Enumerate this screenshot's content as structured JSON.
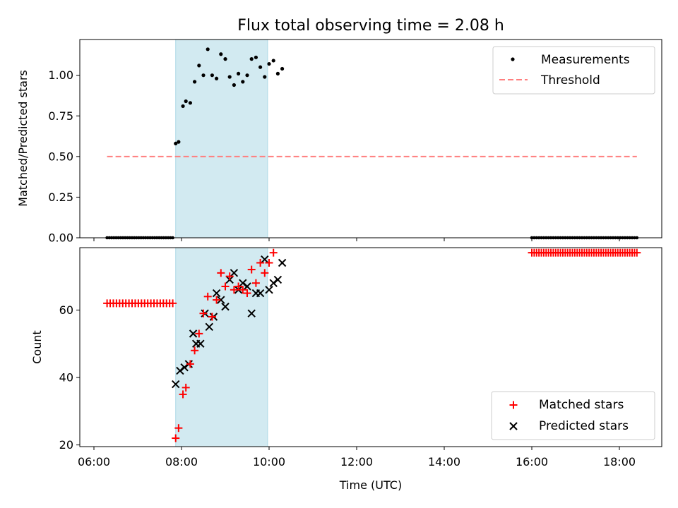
{
  "chart_data": [
    {
      "type": "scatter",
      "title": "Flux total observing time = 2.08 h",
      "ylabel": "Matched/Predicted stars",
      "xlabel": "",
      "xlim": [
        "06:00",
        "19:00"
      ],
      "ylim": [
        0.0,
        1.22
      ],
      "yticks": [
        "0.00",
        "0.25",
        "0.50",
        "0.75",
        "1.00"
      ],
      "yticks_values": [
        0,
        0.25,
        0.5,
        0.75,
        1.0
      ],
      "legend": {
        "placement": "top-right",
        "entries": [
          "Measurements",
          "Threshold"
        ]
      },
      "highlight": {
        "from": "07:52",
        "to": "09:58",
        "color": "#add8e6"
      },
      "colors": {
        "measurements": "#000000",
        "threshold": "#ff7f7f"
      },
      "threshold": {
        "value": 0.5,
        "from": "06:18",
        "to": "18:24"
      },
      "measurements": {
        "zero_segments": [
          {
            "from": "06:18",
            "to": "07:48",
            "count": 30
          },
          {
            "from": "16:00",
            "to": "18:24",
            "count": 45
          }
        ],
        "points": [
          {
            "x": "07:52",
            "y": 0.58
          },
          {
            "x": "07:56",
            "y": 0.59
          },
          {
            "x": "08:02",
            "y": 0.81
          },
          {
            "x": "08:06",
            "y": 0.84
          },
          {
            "x": "08:12",
            "y": 0.83
          },
          {
            "x": "08:18",
            "y": 0.96
          },
          {
            "x": "08:24",
            "y": 1.06
          },
          {
            "x": "08:30",
            "y": 1.0
          },
          {
            "x": "08:36",
            "y": 1.16
          },
          {
            "x": "08:42",
            "y": 1.0
          },
          {
            "x": "08:48",
            "y": 0.98
          },
          {
            "x": "08:54",
            "y": 1.13
          },
          {
            "x": "09:00",
            "y": 1.1
          },
          {
            "x": "09:06",
            "y": 0.99
          },
          {
            "x": "09:12",
            "y": 0.94
          },
          {
            "x": "09:18",
            "y": 1.01
          },
          {
            "x": "09:24",
            "y": 0.96
          },
          {
            "x": "09:30",
            "y": 1.0
          },
          {
            "x": "09:36",
            "y": 1.1
          },
          {
            "x": "09:42",
            "y": 1.11
          },
          {
            "x": "09:48",
            "y": 1.05
          },
          {
            "x": "09:54",
            "y": 0.99
          },
          {
            "x": "10:00",
            "y": 1.07
          },
          {
            "x": "10:06",
            "y": 1.09
          },
          {
            "x": "10:12",
            "y": 1.01
          },
          {
            "x": "10:18",
            "y": 1.04
          }
        ]
      }
    },
    {
      "type": "scatter",
      "title": "",
      "ylabel": "Count",
      "xlabel": "Time (UTC)",
      "xlim": [
        "06:00",
        "19:00"
      ],
      "ylim": [
        19.5,
        78.5
      ],
      "yticks": [
        "20",
        "40",
        "60"
      ],
      "yticks_values": [
        20,
        40,
        60
      ],
      "xticks": [
        "06:00",
        "08:00",
        "10:00",
        "12:00",
        "14:00",
        "16:00",
        "18:00"
      ],
      "legend": {
        "placement": "bottom-right",
        "entries": [
          "Matched stars",
          "Predicted stars"
        ]
      },
      "highlight": {
        "from": "07:52",
        "to": "09:58",
        "color": "#add8e6"
      },
      "colors": {
        "matched": "#ff0000",
        "predicted": "#000000"
      },
      "matched_constant_segments": [
        {
          "from": "06:18",
          "to": "07:48",
          "count": 22,
          "value": 62
        },
        {
          "from": "16:00",
          "to": "18:24",
          "count": 45,
          "value": 77
        }
      ],
      "series": [
        {
          "name": "Matched stars",
          "points": [
            {
              "x": "07:52",
              "y": 22
            },
            {
              "x": "07:56",
              "y": 25
            },
            {
              "x": "08:02",
              "y": 35
            },
            {
              "x": "08:06",
              "y": 37
            },
            {
              "x": "08:12",
              "y": 44
            },
            {
              "x": "08:18",
              "y": 48
            },
            {
              "x": "08:24",
              "y": 53
            },
            {
              "x": "08:30",
              "y": 59
            },
            {
              "x": "08:36",
              "y": 64
            },
            {
              "x": "08:42",
              "y": 58
            },
            {
              "x": "08:48",
              "y": 63
            },
            {
              "x": "08:54",
              "y": 71
            },
            {
              "x": "09:00",
              "y": 67
            },
            {
              "x": "09:06",
              "y": 70
            },
            {
              "x": "09:12",
              "y": 66
            },
            {
              "x": "09:18",
              "y": 67
            },
            {
              "x": "09:24",
              "y": 66
            },
            {
              "x": "09:30",
              "y": 65
            },
            {
              "x": "09:36",
              "y": 72
            },
            {
              "x": "09:42",
              "y": 68
            },
            {
              "x": "09:48",
              "y": 74
            },
            {
              "x": "09:54",
              "y": 71
            },
            {
              "x": "10:00",
              "y": 74
            },
            {
              "x": "10:06",
              "y": 77
            }
          ]
        },
        {
          "name": "Predicted stars",
          "points": [
            {
              "x": "07:52",
              "y": 38
            },
            {
              "x": "07:58",
              "y": 42
            },
            {
              "x": "08:04",
              "y": 43
            },
            {
              "x": "08:10",
              "y": 44
            },
            {
              "x": "08:16",
              "y": 53
            },
            {
              "x": "08:20",
              "y": 50
            },
            {
              "x": "08:26",
              "y": 50
            },
            {
              "x": "08:32",
              "y": 59
            },
            {
              "x": "08:38",
              "y": 55
            },
            {
              "x": "08:44",
              "y": 58
            },
            {
              "x": "08:48",
              "y": 65
            },
            {
              "x": "08:54",
              "y": 63
            },
            {
              "x": "09:00",
              "y": 61
            },
            {
              "x": "09:06",
              "y": 69
            },
            {
              "x": "09:12",
              "y": 71
            },
            {
              "x": "09:18",
              "y": 66
            },
            {
              "x": "09:24",
              "y": 68
            },
            {
              "x": "09:30",
              "y": 67
            },
            {
              "x": "09:36",
              "y": 59
            },
            {
              "x": "09:42",
              "y": 65
            },
            {
              "x": "09:48",
              "y": 65
            },
            {
              "x": "09:54",
              "y": 75
            },
            {
              "x": "10:00",
              "y": 66
            },
            {
              "x": "10:06",
              "y": 68
            },
            {
              "x": "10:12",
              "y": 69
            },
            {
              "x": "10:18",
              "y": 74
            }
          ]
        }
      ]
    }
  ]
}
